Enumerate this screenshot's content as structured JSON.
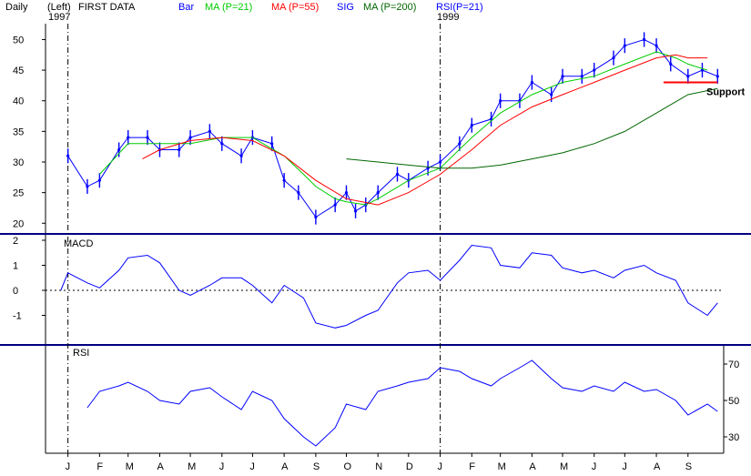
{
  "header": {
    "period": "Daily",
    "scale": "(Left)",
    "start_year": "1997",
    "data": "FIRST DATA",
    "legend": [
      {
        "label": "Bar",
        "color": "#0000ff"
      },
      {
        "label": "MA (P=21)",
        "color": "#00cc00"
      },
      {
        "label": "MA (P=55)",
        "color": "#ff0000"
      },
      {
        "label": "SIG",
        "color": "#0000ff"
      },
      {
        "label": "MA (P=200)",
        "color": "#006600"
      },
      {
        "label": "RSI(P=21)",
        "color": "#0000ff"
      }
    ],
    "year_marker": "1999"
  },
  "colors": {
    "bar": "#0000ff",
    "ma21": "#00cc00",
    "ma55": "#ff0000",
    "ma200": "#006600",
    "macd": "#0000ff",
    "rsi": "#0000ff",
    "separator": "#000080",
    "support": "#ff0000"
  },
  "chart_data": [
    {
      "type": "line",
      "panel": "price",
      "y_ticks": [
        20,
        25,
        30,
        35,
        40,
        45,
        50
      ],
      "ylim": [
        19,
        52
      ],
      "annotation": "Support",
      "support_level": 43,
      "support_range": [
        "1999-08-08",
        "1999-09-30"
      ],
      "series": [
        {
          "name": "Bar",
          "x": [
            "1998-01-01",
            "1998-01-20",
            "1998-02-01",
            "1998-02-20",
            "1998-03-01",
            "1998-03-20",
            "1998-04-01",
            "1998-04-20",
            "1998-05-01",
            "1998-05-20",
            "1998-06-01",
            "1998-06-20",
            "1998-07-01",
            "1998-07-20",
            "1998-08-01",
            "1998-08-15",
            "1998-09-01",
            "1998-09-20",
            "1998-10-01",
            "1998-10-10",
            "1998-10-20",
            "1998-11-01",
            "1998-11-20",
            "1998-12-01",
            "1998-12-20",
            "1999-01-01",
            "1999-01-20",
            "1999-02-01",
            "1999-02-20",
            "1999-03-01",
            "1999-03-20",
            "1999-04-01",
            "1999-04-20",
            "1999-05-01",
            "1999-05-20",
            "1999-06-01",
            "1999-06-20",
            "1999-07-01",
            "1999-07-20",
            "1999-08-01",
            "1999-08-15",
            "1999-09-01",
            "1999-09-15",
            "1999-09-30"
          ],
          "values": [
            31,
            26,
            27,
            32,
            34,
            34,
            32,
            32,
            34,
            35,
            33,
            31,
            34,
            33,
            27,
            25,
            21,
            23,
            25,
            22,
            23,
            25,
            28,
            27,
            29,
            30,
            33,
            36,
            37,
            40,
            40,
            43,
            41,
            44,
            44,
            45,
            47,
            49,
            50,
            49,
            46,
            44,
            45,
            44
          ]
        },
        {
          "name": "MA (P=21)",
          "x": [
            "1998-02-01",
            "1998-03-01",
            "1998-04-01",
            "1998-05-01",
            "1998-06-01",
            "1998-07-01",
            "1998-08-01",
            "1998-08-20",
            "1998-09-01",
            "1998-09-20",
            "1998-10-01",
            "1998-10-20",
            "1998-11-01",
            "1998-12-01",
            "1999-01-01",
            "1999-02-01",
            "1999-03-01",
            "1999-04-01",
            "1999-05-01",
            "1999-06-01",
            "1999-07-01",
            "1999-08-01",
            "1999-08-20",
            "1999-09-01",
            "1999-09-20"
          ],
          "values": [
            28,
            33,
            33,
            33,
            34,
            34,
            31,
            28,
            26,
            24,
            23.5,
            23,
            24,
            27,
            29,
            34,
            38,
            41,
            43,
            44,
            46,
            48,
            47,
            46,
            45
          ]
        },
        {
          "name": "MA (P=55)",
          "x": [
            "1998-03-15",
            "1998-04-01",
            "1998-05-01",
            "1998-06-01",
            "1998-07-01",
            "1998-08-01",
            "1998-09-01",
            "1998-10-01",
            "1998-11-01",
            "1998-12-01",
            "1999-01-01",
            "1999-02-01",
            "1999-03-01",
            "1999-04-01",
            "1999-05-01",
            "1999-06-01",
            "1999-07-01",
            "1999-08-01",
            "1999-08-20",
            "1999-09-01",
            "1999-09-20"
          ],
          "values": [
            30.5,
            32,
            33.5,
            34,
            33.5,
            31,
            27,
            24,
            23,
            25,
            28,
            32,
            36,
            39,
            41,
            43,
            45,
            47,
            47.5,
            47,
            47
          ]
        },
        {
          "name": "MA (P=200)",
          "x": [
            "1998-10-01",
            "1998-11-01",
            "1998-12-01",
            "1999-01-01",
            "1999-02-01",
            "1999-03-01",
            "1999-04-01",
            "1999-05-01",
            "1999-06-01",
            "1999-07-01",
            "1999-08-01",
            "1999-09-01",
            "1999-09-30"
          ],
          "values": [
            30.5,
            30,
            29.5,
            29,
            29,
            29.5,
            30.5,
            31.5,
            33,
            35,
            38,
            41,
            42
          ]
        }
      ]
    },
    {
      "type": "line",
      "panel": "macd",
      "title": "MACD",
      "y_ticks": [
        -1,
        0,
        1,
        2
      ],
      "ylim": [
        -2,
        2
      ],
      "zero_line": 0,
      "series": [
        {
          "name": "MACD",
          "x": [
            "1997-12-25",
            "1998-01-01",
            "1998-01-20",
            "1998-02-01",
            "1998-02-20",
            "1998-03-01",
            "1998-03-20",
            "1998-04-01",
            "1998-04-20",
            "1998-05-01",
            "1998-05-20",
            "1998-06-01",
            "1998-06-20",
            "1998-07-01",
            "1998-07-20",
            "1998-08-01",
            "1998-08-20",
            "1998-09-01",
            "1998-09-20",
            "1998-10-01",
            "1998-10-20",
            "1998-11-01",
            "1998-11-20",
            "1998-12-01",
            "1998-12-20",
            "1999-01-01",
            "1999-01-20",
            "1999-02-01",
            "1999-02-20",
            "1999-03-01",
            "1999-03-20",
            "1999-04-01",
            "1999-04-20",
            "1999-05-01",
            "1999-05-20",
            "1999-06-01",
            "1999-06-20",
            "1999-07-01",
            "1999-07-20",
            "1999-08-01",
            "1999-08-20",
            "1999-09-01",
            "1999-09-20",
            "1999-09-30"
          ],
          "values": [
            0,
            0.7,
            0.3,
            0.1,
            0.8,
            1.3,
            1.4,
            1.1,
            0.0,
            -0.2,
            0.2,
            0.5,
            0.5,
            0.2,
            -0.5,
            0.2,
            -0.3,
            -1.3,
            -1.5,
            -1.4,
            -1.0,
            -0.8,
            0.3,
            0.7,
            0.8,
            0.4,
            1.2,
            1.8,
            1.7,
            1.0,
            0.9,
            1.5,
            1.4,
            0.9,
            0.7,
            0.8,
            0.5,
            0.8,
            1.0,
            0.7,
            0.4,
            -0.5,
            -1.0,
            -0.5
          ]
        }
      ]
    },
    {
      "type": "line",
      "panel": "rsi",
      "title": "RSI",
      "y_ticks": [
        30,
        50,
        70
      ],
      "ylim": [
        23,
        74
      ],
      "series": [
        {
          "name": "RSI",
          "x": [
            "1998-01-20",
            "1998-02-01",
            "1998-02-20",
            "1998-03-01",
            "1998-03-20",
            "1998-04-01",
            "1998-04-20",
            "1998-05-01",
            "1998-05-20",
            "1998-06-01",
            "1998-06-20",
            "1998-07-01",
            "1998-07-20",
            "1998-08-01",
            "1998-08-20",
            "1998-09-01",
            "1998-09-20",
            "1998-10-01",
            "1998-10-20",
            "1998-11-01",
            "1998-11-20",
            "1998-12-01",
            "1998-12-20",
            "1999-01-01",
            "1999-01-20",
            "1999-02-01",
            "1999-02-20",
            "1999-03-01",
            "1999-03-20",
            "1999-04-01",
            "1999-04-20",
            "1999-05-01",
            "1999-05-20",
            "1999-06-01",
            "1999-06-20",
            "1999-07-01",
            "1999-07-20",
            "1999-08-01",
            "1999-08-20",
            "1999-09-01",
            "1999-09-20",
            "1999-09-30"
          ],
          "values": [
            46,
            55,
            58,
            60,
            55,
            50,
            48,
            55,
            57,
            52,
            45,
            55,
            50,
            40,
            30,
            25,
            35,
            48,
            45,
            55,
            58,
            60,
            62,
            68,
            66,
            62,
            58,
            62,
            68,
            72,
            62,
            57,
            55,
            58,
            55,
            60,
            55,
            56,
            50,
            42,
            48,
            44
          ]
        }
      ]
    }
  ],
  "x_axis": {
    "month_labels": [
      "J",
      "F",
      "M",
      "A",
      "M",
      "J",
      "J",
      "A",
      "S",
      "O",
      "N",
      "D",
      "J",
      "F",
      "M",
      "A",
      "M",
      "J",
      "J",
      "A",
      "S"
    ],
    "month_dates": [
      "1998-01-01",
      "1998-02-01",
      "1998-03-01",
      "1998-04-01",
      "1998-05-01",
      "1998-06-01",
      "1998-07-01",
      "1998-08-01",
      "1998-09-01",
      "1998-10-01",
      "1998-11-01",
      "1998-12-01",
      "1999-01-01",
      "1999-02-01",
      "1999-03-01",
      "1999-04-01",
      "1999-05-01",
      "1999-06-01",
      "1999-07-01",
      "1999-08-01",
      "1999-09-01"
    ],
    "year_start_dates": [
      "1998-01-01",
      "1999-01-01"
    ],
    "range": [
      "1997-12-10",
      "1999-10-06"
    ]
  }
}
